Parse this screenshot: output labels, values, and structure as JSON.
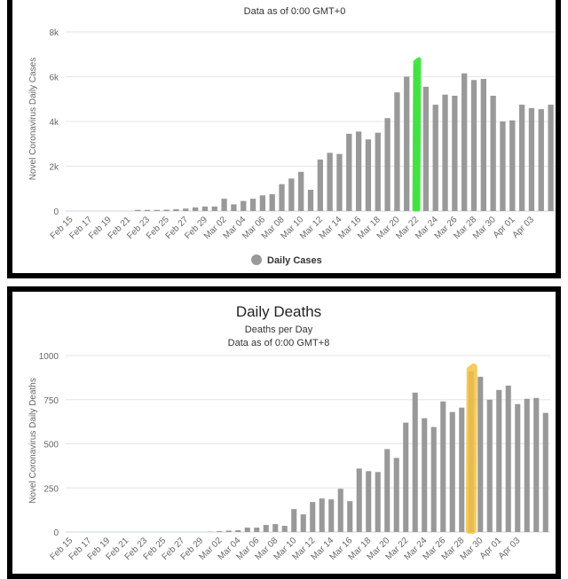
{
  "colors": {
    "bar": "#999999",
    "grid": "#e6e6e6",
    "text": "#333333",
    "axis": "#666666",
    "highlight_top": "#3de63d",
    "highlight_bottom": "#f5c242"
  },
  "chart_data": [
    {
      "type": "bar",
      "subtitle": "Data as of 0:00 GMT+0",
      "ylabel": "Novel Coronavirus Daily Cases",
      "ylim": [
        0,
        8000
      ],
      "yticks": [
        "0",
        "2k",
        "4k",
        "6k",
        "8k"
      ],
      "xtick_labels": [
        "Feb 15",
        "Feb 17",
        "Feb 19",
        "Feb 21",
        "Feb 23",
        "Feb 25",
        "Feb 27",
        "Feb 29",
        "Mar 02",
        "Mar 04",
        "Mar 06",
        "Mar 08",
        "Mar 10",
        "Mar 12",
        "Mar 14",
        "Mar 16",
        "Mar 18",
        "Mar 20",
        "Mar 22",
        "Mar 24",
        "Mar 26",
        "Mar 28",
        "Mar 30",
        "Apr 01",
        "Apr 03"
      ],
      "legend": "Daily Cases",
      "highlight_category": "Mar 21",
      "series": [
        {
          "name": "Daily Cases",
          "values": [
            0,
            0,
            0,
            0,
            0,
            0,
            0,
            50,
            50,
            50,
            60,
            80,
            110,
            160,
            200,
            200,
            550,
            300,
            450,
            550,
            700,
            750,
            1200,
            1450,
            1750,
            950,
            2300,
            2600,
            2550,
            3450,
            3550,
            3200,
            3500,
            4150,
            5300,
            6000,
            6550,
            5550,
            4750,
            5200,
            5150,
            6150,
            5850,
            5900,
            5150,
            4000,
            4050,
            4750,
            4600,
            4550,
            4750
          ]
        }
      ]
    },
    {
      "type": "bar",
      "title": "Daily Deaths",
      "subtitle_lines": [
        "Deaths per Day",
        "Data as of 0:00 GMT+8"
      ],
      "ylabel": "Novel Coronavirus Daily Deaths",
      "ylim": [
        0,
        1000
      ],
      "yticks": [
        "0",
        "250",
        "500",
        "750",
        "1000"
      ],
      "xtick_labels": [
        "Feb 15",
        "Feb 17",
        "Feb 19",
        "Feb 21",
        "Feb 23",
        "Feb 25",
        "Feb 27",
        "Feb 29",
        "Mar 02",
        "Mar 04",
        "Mar 06",
        "Mar 08",
        "Mar 10",
        "Mar 12",
        "Mar 14",
        "Mar 16",
        "Mar 18",
        "Mar 20",
        "Mar 22",
        "Mar 24",
        "Mar 26",
        "Mar 28",
        "Mar 30",
        "Apr 01",
        "Apr 03"
      ],
      "highlight_category": "Mar 27",
      "series": [
        {
          "values": [
            0,
            0,
            0,
            0,
            0,
            0,
            0,
            0,
            0,
            0,
            0,
            0,
            0,
            0,
            0,
            2,
            5,
            8,
            10,
            25,
            25,
            40,
            45,
            35,
            130,
            100,
            170,
            190,
            185,
            245,
            175,
            360,
            345,
            340,
            470,
            420,
            620,
            790,
            645,
            595,
            740,
            680,
            705,
            910,
            880,
            750,
            805,
            830,
            725,
            755,
            760,
            675
          ]
        }
      ]
    }
  ]
}
